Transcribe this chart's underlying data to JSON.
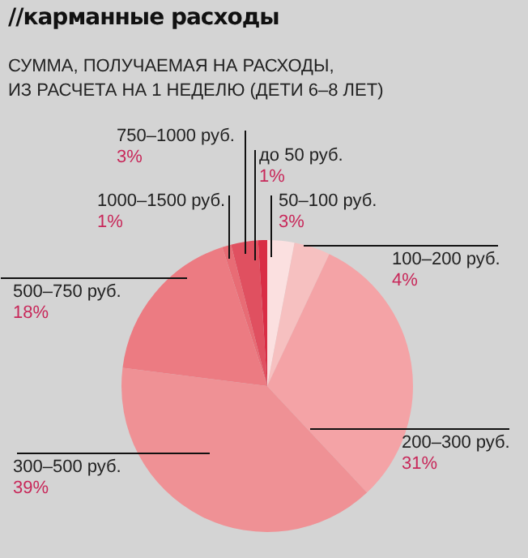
{
  "chart_data": {
    "type": "pie",
    "title": "//карманные расходы",
    "subtitle": "СУММА, ПОЛУЧАЕМАЯ НА РАСХОДЫ,\nИЗ РАСЧЕТА НА 1 НЕДЕЛЮ (ДЕТИ 6–8 ЛЕТ)",
    "categories": [
      "50–100 руб.",
      "100–200 руб.",
      "200–300 руб.",
      "300–500 руб.",
      "500–750 руб.",
      "1000–1500 руб.",
      "750–1000 руб.",
      "до 50 руб."
    ],
    "values": [
      3,
      4,
      31,
      39,
      18,
      1,
      3,
      1
    ],
    "value_labels": [
      "3%",
      "4%",
      "31%",
      "39%",
      "18%",
      "1%",
      "3%",
      "1%"
    ],
    "colors": [
      "#fbe0e0",
      "#f6c0c0",
      "#f4a3a6",
      "#ef9195",
      "#ec7b82",
      "#e86c75",
      "#e05060",
      "#d92d45"
    ],
    "legend": false
  }
}
